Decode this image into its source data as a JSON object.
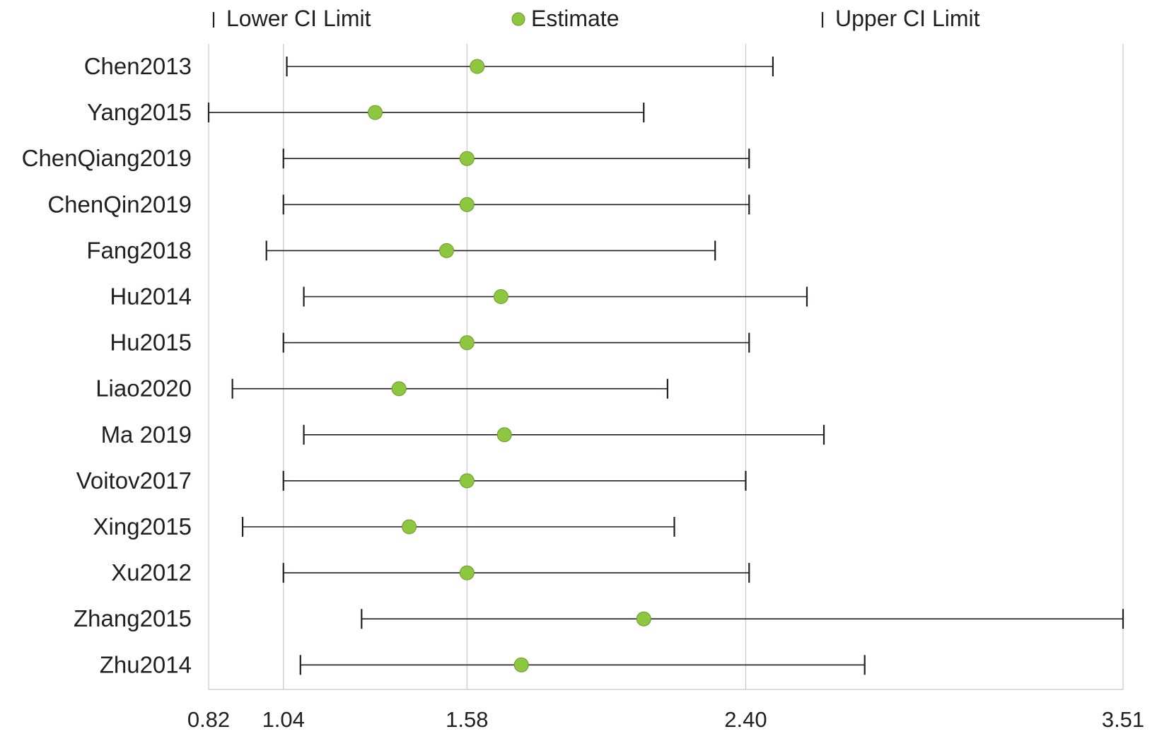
{
  "chart_data": {
    "type": "forest",
    "legend": {
      "position": "top",
      "items": [
        {
          "key": "lower",
          "label": "Lower CI Limit",
          "marker": "tick"
        },
        {
          "key": "estimate",
          "label": "Estimate",
          "marker": "circle"
        },
        {
          "key": "upper",
          "label": "Upper CI Limit",
          "marker": "tick"
        }
      ]
    },
    "x_axis": {
      "range": [
        0.82,
        3.51
      ],
      "ticks": [
        0.82,
        1.04,
        1.58,
        2.4,
        3.51
      ],
      "tick_labels": [
        "0.82",
        "1.04",
        "1.58",
        "2.40",
        "3.51"
      ],
      "gridlines": true
    },
    "studies": [
      {
        "name": "Chen2013",
        "lower": 1.05,
        "estimate": 1.61,
        "upper": 2.48
      },
      {
        "name": "Yang2015",
        "lower": 0.82,
        "estimate": 1.31,
        "upper": 2.1
      },
      {
        "name": "ChenQiang2019",
        "lower": 1.04,
        "estimate": 1.58,
        "upper": 2.41
      },
      {
        "name": "ChenQin2019",
        "lower": 1.04,
        "estimate": 1.58,
        "upper": 2.41
      },
      {
        "name": "Fang2018",
        "lower": 0.99,
        "estimate": 1.52,
        "upper": 2.31
      },
      {
        "name": "Hu2014",
        "lower": 1.1,
        "estimate": 1.68,
        "upper": 2.58
      },
      {
        "name": "Hu2015",
        "lower": 1.04,
        "estimate": 1.58,
        "upper": 2.41
      },
      {
        "name": "Liao2020",
        "lower": 0.89,
        "estimate": 1.38,
        "upper": 2.17
      },
      {
        "name": "Ma 2019",
        "lower": 1.1,
        "estimate": 1.69,
        "upper": 2.63
      },
      {
        "name": "Voitov2017",
        "lower": 1.04,
        "estimate": 1.58,
        "upper": 2.4
      },
      {
        "name": "Xing2015",
        "lower": 0.92,
        "estimate": 1.41,
        "upper": 2.19
      },
      {
        "name": "Xu2012",
        "lower": 1.04,
        "estimate": 1.58,
        "upper": 2.41
      },
      {
        "name": "Zhang2015",
        "lower": 1.27,
        "estimate": 2.1,
        "upper": 3.51
      },
      {
        "name": "Zhu2014",
        "lower": 1.09,
        "estimate": 1.74,
        "upper": 2.75
      }
    ],
    "colors": {
      "estimate_fill": "#8dc63f",
      "estimate_stroke": "#6a9a2a",
      "ci_line": "#231f20",
      "grid": "#c8c8c8",
      "text": "#231f20"
    }
  }
}
